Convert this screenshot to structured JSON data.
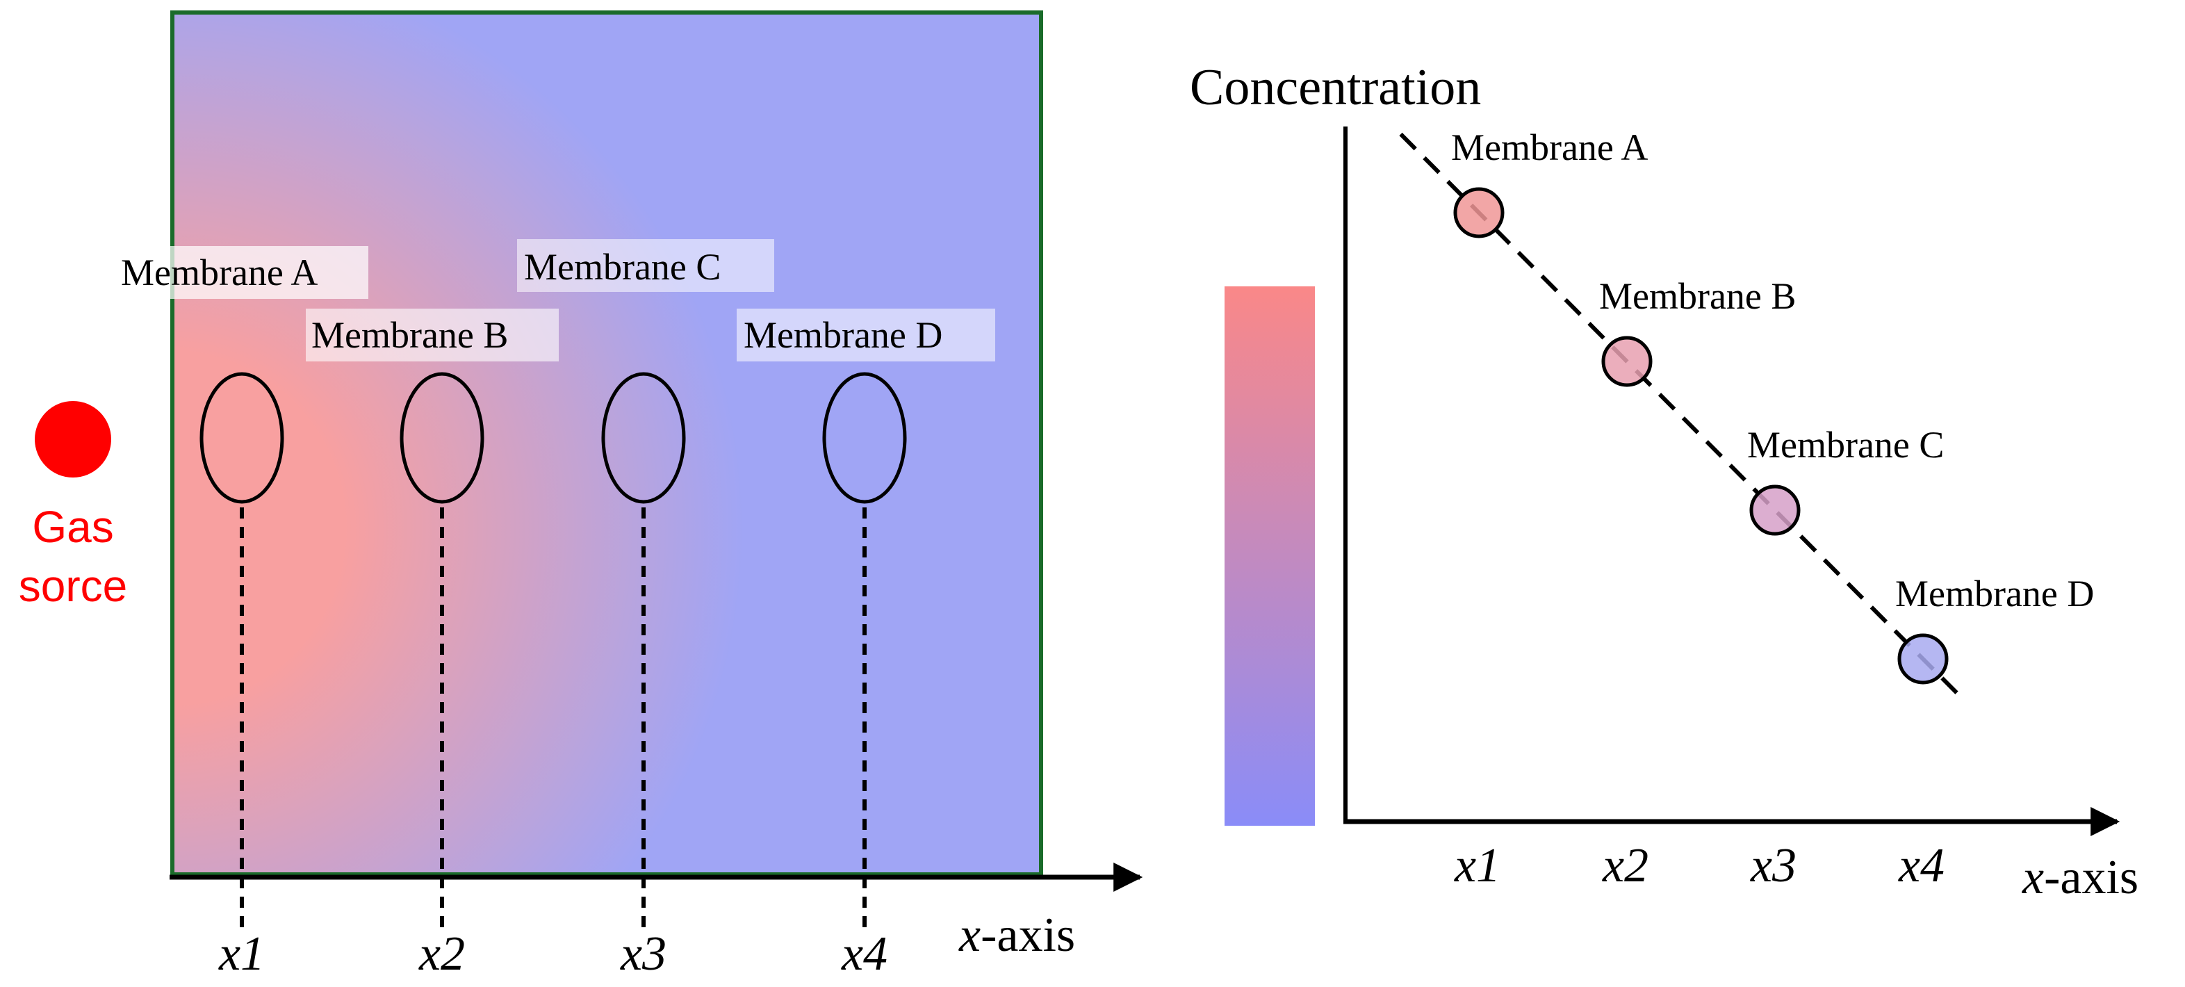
{
  "gas_source": {
    "line1": "Gas",
    "line2": "sorce",
    "color": "#ff0000"
  },
  "left_panel": {
    "membranes": [
      {
        "label": "Membrane A",
        "position": "x1"
      },
      {
        "label": "Membrane B",
        "position": "x2"
      },
      {
        "label": "Membrane C",
        "position": "x3"
      },
      {
        "label": "Membrane D",
        "position": "x4"
      }
    ],
    "axis": {
      "prefix": "x",
      "suffix": "-axis"
    },
    "colors": {
      "high": "#f8a0a0",
      "low": "#a0a5f5",
      "border": "#1a6b2a"
    }
  },
  "colorbar": {
    "top_color": "#fa8888",
    "bottom_color": "#8a8cf8"
  },
  "chart_data": {
    "type": "scatter",
    "title": "Concentration",
    "xlabel_prefix": "x",
    "xlabel_suffix": "-axis",
    "categories": [
      "x1",
      "x2",
      "x3",
      "x4"
    ],
    "series": [
      {
        "name": "Concentration",
        "labels": [
          "Membrane A",
          "Membrane B",
          "Membrane C",
          "Membrane D"
        ],
        "values": [
          4,
          3,
          2,
          1
        ],
        "colors": [
          "#f09696",
          "#e8a0b0",
          "#d6a0c8",
          "#a8aaf0"
        ]
      }
    ],
    "trend": "linear-dashed",
    "ylim": [
      0,
      5
    ],
    "grid": false
  }
}
